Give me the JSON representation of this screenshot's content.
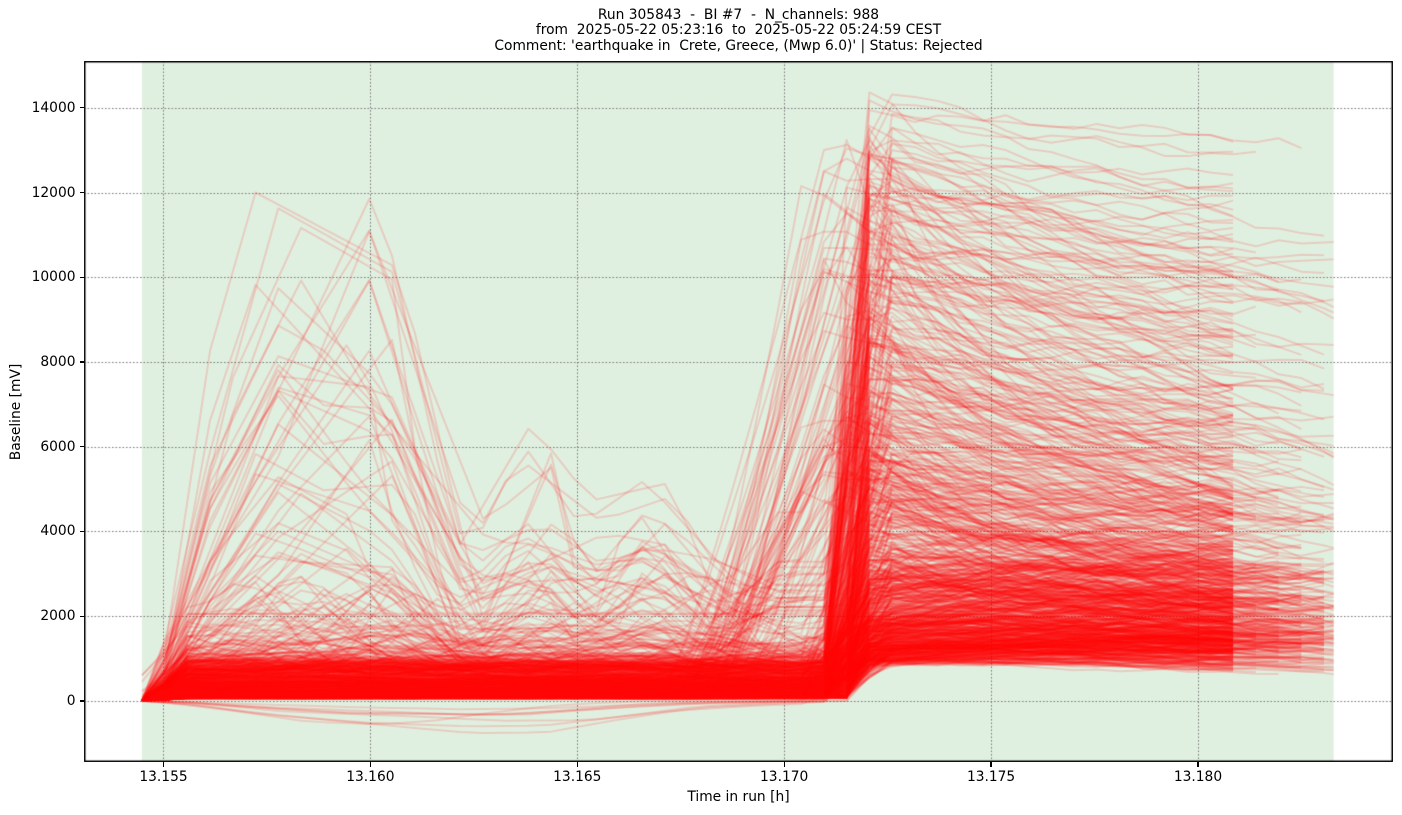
{
  "title": {
    "lines": [
      "Run 305843  -  BI #7  -  N_channels: 988",
      "from  2025-05-22 05:23:16  to  2025-05-22 05:24:59 CEST",
      "Comment: 'earthquake in  Crete, Greece, (Mwp 6.0)' | Status: Rejected"
    ]
  },
  "axes": {
    "xlabel": "Time in run [h]",
    "ylabel": "Baseline [mV]",
    "xlim": [
      13.153079,
      13.184713
    ],
    "ylim": [
      -1443,
      15106
    ],
    "xticks": [
      13.155,
      13.16,
      13.165,
      13.17,
      13.175,
      13.18
    ],
    "xtick_labels": [
      "13.155",
      "13.160",
      "13.165",
      "13.170",
      "13.175",
      "13.180"
    ],
    "yticks": [
      0,
      2000,
      4000,
      6000,
      8000,
      10000,
      12000,
      14000
    ],
    "ytick_labels": [
      "0",
      "2000",
      "4000",
      "6000",
      "8000",
      "10000",
      "12000",
      "14000"
    ],
    "grid": {
      "on": true,
      "style": "dotted",
      "color": "#787878",
      "dash": [
        1.6,
        1.9
      ],
      "width": 1.0
    },
    "spine_color": "#000000",
    "spine_width": 1.5,
    "tick_len": 4.5,
    "tick_width": 1.3
  },
  "span": {
    "t0": 13.154478,
    "t1": 13.18328,
    "color": "#008000",
    "alpha": 0.12
  },
  "chart_data": {
    "type": "line",
    "title": "Run 305843  -  BI #7  -  N_channels: 988",
    "xlabel": "Time in run [h]",
    "ylabel": "Baseline [mV]",
    "n_series": 988,
    "x_start": 13.154478,
    "x_end": 13.18328,
    "xlim": [
      13.153079,
      13.184713
    ],
    "ylim": [
      -1443,
      15106
    ],
    "data_min": -690,
    "data_max": 14352,
    "event_time_h": 13.1715,
    "description": "988 detector-channel baselines [mV] vs time in run [h]. All channels start at 0 mV at 13.1545 h, settle into a dense 100-1200 mV band; ~30 channels spike early to 2000-12000 mV around 13.1575-13.1605 h then dip; at ~13.170-13.1725 h (earthquake) nearly all channels jump steeply to 1000-14350 mV, then plateau/decay until record ends between 13.1806 and 13.1833 h.",
    "line": {
      "color": "#ff0000",
      "alpha": 0.15,
      "width": 2.0
    },
    "generator": {
      "seed": 1337,
      "n_points": 53,
      "dt": 0.0005494,
      "edge_end_i": 48,
      "end_mix": [
        {
          "frac": 0.03,
          "kind": "early",
          "i0": 43,
          "i1": 46
        },
        {
          "frac": 0.55,
          "kind": "edge"
        },
        {
          "frac": 0.05,
          "kind": "at",
          "i": 49
        },
        {
          "frac": 0.07,
          "kind": "at",
          "i": 50
        },
        {
          "frac": 0.08,
          "kind": "at",
          "i": 51
        },
        {
          "frac": 0.14,
          "kind": "at",
          "i": 52
        },
        {
          "frac": 0.08,
          "kind": "full"
        }
      ],
      "counts": {
        "early": 48,
        "neg": 8,
        "flat2k": 2,
        "mid": 75,
        "normal": 855
      },
      "normal": {
        "base_min": 70,
        "base_spread": 900,
        "base_pow": 2.8,
        "hi_base_frac": 0.02,
        "hi_base_min": 1000,
        "hi_base_spread": 700,
        "sigma_min": 0.07,
        "sigma_spread": 0.09,
        "jump_c": 30.4,
        "jump_c_spread": 1.5,
        "jump_w_min": 0.4,
        "jump_w_spread": 0.7,
        "pre_frac": 0.07,
        "pre_c": 26.5,
        "pre_c_spread": 3.0,
        "pre_w": 2.0,
        "pre_w_spread": 2.0,
        "pre_peak_min": 4500,
        "pre_peak_spread": 9000,
        "pre_peak_pow": 1.1,
        "amp_scale": 560,
        "amp_k": 3.15,
        "amp_pow": 1.85,
        "amp_hi_frac": 0.022,
        "amp_hi_min": 8800,
        "amp_hi_spread": 5000,
        "peak_b0": 800,
        "peak_b_mult": 1.15,
        "peak_cap": 14290,
        "pl_low_th": 3000,
        "pl_low_min": 1.08,
        "pl_low_spread": 0.5,
        "pl_hi_min": 0.52,
        "pl_hi_spread": 0.38,
        "sat_th": 9800,
        "sat_frac": 0.6,
        "sat_min": 0.86,
        "sat_spread": 0.12,
        "tau_min": 2.0,
        "tau_spread": 16,
        "drift_min": 0.003,
        "drift_spread": 0.02,
        "post_sigma": 0.06
      },
      "early": {
        "E_hi_frac": 0.25,
        "E_hi_min": 9200,
        "E_hi_spread": 2850,
        "E_min": 2500,
        "E_spread": 6500,
        "late_peak_frac": 0.4,
        "anchors": [
          {
            "i": 10.5,
            "ispan": 2,
            "f": 0.75,
            "fspan": 0.3
          },
          {
            "i": 14.5,
            "ispan": 2,
            "f": 0.27,
            "fspan": 0.3
          },
          {
            "i": 17.5,
            "ispan": 2,
            "f": 0.45,
            "fspan": 0.3
          },
          {
            "i": 20.0,
            "ispan": 2,
            "f": 0.3,
            "fspan": 0.2
          },
          {
            "i": 22.5,
            "ispan": 2,
            "f": 0.42,
            "fspan": 0.22
          },
          {
            "i": 25.5,
            "ispan": 2,
            "f": 0.24,
            "fspan": 0.2
          },
          {
            "i": 28.0,
            "ispan": 1,
            "f": 0.3,
            "fspan": 0.2
          }
        ]
      },
      "neg": {
        "D_min": 180,
        "D_spread": 620,
        "keyframes": [
          [
            0,
            0
          ],
          [
            2,
            -0.12
          ],
          [
            5,
            -0.45
          ],
          [
            9,
            -0.75
          ],
          [
            13,
            -1.0
          ],
          [
            16,
            -0.85
          ],
          [
            19,
            -0.5
          ],
          [
            22,
            -0.2
          ],
          [
            25,
            -0.08
          ],
          [
            28,
            0.0
          ]
        ]
      },
      "flat2k": {
        "b_min": 1920,
        "b_spread": 160
      },
      "mid": {
        "m_min": 450,
        "m_spread": 750,
        "m_pow": 2.0,
        "osc_sigma": 0.24,
        "bump_amp_min": 400,
        "bump_amp_spread": 2600,
        "b1_c_min": 4,
        "b1_c_span": 9,
        "b2_c_min": 16,
        "b2_c_span": 10,
        "bump_w_min": 2.5,
        "bump_w_spread": 6
      }
    }
  }
}
